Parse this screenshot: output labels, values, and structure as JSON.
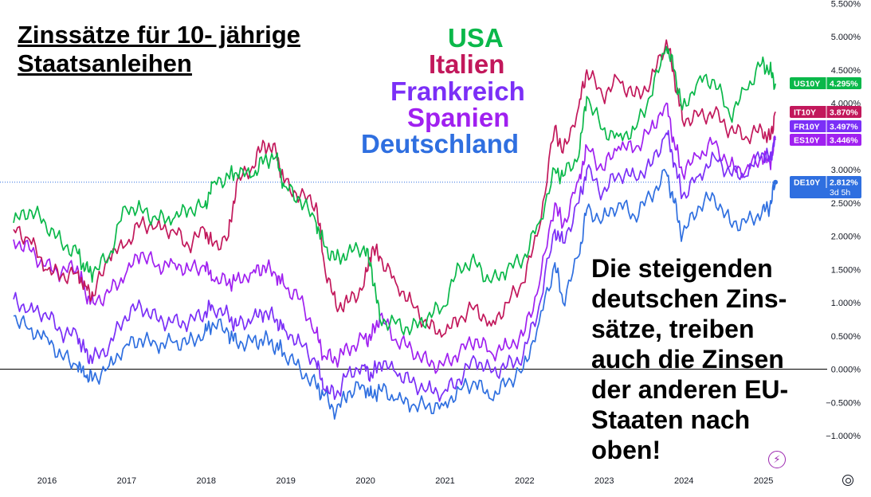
{
  "title_lines": [
    "Zinssätze für 10- jährige",
    "Staatsanleihen"
  ],
  "legend_words": [
    {
      "text": "USA",
      "color": "#0ab84a"
    },
    {
      "text": "Italien",
      "color": "#c2185b"
    },
    {
      "text": "Frankreich",
      "color": "#7b2ff7"
    },
    {
      "text": "Spanien",
      "color": "#a020f0"
    },
    {
      "text": "Deutschland",
      "color": "#2f6fe0"
    }
  ],
  "annotation_lines": [
    "Die steigenden",
    "deutschen Zins-",
    "sätze, treiben",
    "auch die Zinsen",
    "der anderen EU-",
    "Staaten nach",
    "oben!"
  ],
  "price_tags": [
    {
      "symbol": "US10Y",
      "value": "4.295%",
      "color": "#0ab84a"
    },
    {
      "symbol": "IT10Y",
      "value": "3.870%",
      "color": "#c2185b"
    },
    {
      "symbol": "FR10Y",
      "value": "3.497%",
      "color": "#7b2ff7"
    },
    {
      "symbol": "ES10Y",
      "value": "3.446%",
      "color": "#a020f0"
    },
    {
      "symbol": "DE10Y",
      "value": "2.812%",
      "extra": "3d 5h",
      "color": "#2f6fe0"
    }
  ],
  "icons": [
    "flash-icon",
    "settings-icon"
  ],
  "chart_data": {
    "type": "line",
    "title": "",
    "xlabel": "",
    "ylabel": "",
    "x_ticks": [
      "2016",
      "2017",
      "2018",
      "2019",
      "2020",
      "2021",
      "2022",
      "2023",
      "2024",
      "2025"
    ],
    "y_ticks": [
      "5.500%",
      "5.000%",
      "4.500%",
      "4.000%",
      "3.500%",
      "3.000%",
      "2.500%",
      "2.000%",
      "1.500%",
      "1.000%",
      "0.500%",
      "0.000%",
      "−0.500%",
      "−1.000%"
    ],
    "ylim": [
      -1.1,
      5.5
    ],
    "x_range": [
      2015.57,
      2025.22
    ],
    "grid": false,
    "x": [
      2015.6,
      2015.8,
      2016.0,
      2016.2,
      2016.4,
      2016.5,
      2016.6,
      2016.8,
      2017.0,
      2017.2,
      2017.4,
      2017.6,
      2017.8,
      2018.0,
      2018.1,
      2018.3,
      2018.4,
      2018.6,
      2018.75,
      2018.9,
      2019.0,
      2019.2,
      2019.4,
      2019.5,
      2019.65,
      2019.8,
      2020.0,
      2020.1,
      2020.2,
      2020.4,
      2020.6,
      2020.8,
      2021.0,
      2021.2,
      2021.4,
      2021.6,
      2021.8,
      2022.0,
      2022.2,
      2022.4,
      2022.5,
      2022.7,
      2022.8,
      2023.0,
      2023.2,
      2023.4,
      2023.6,
      2023.8,
      2023.9,
      2024.0,
      2024.2,
      2024.4,
      2024.6,
      2024.8,
      2025.0,
      2025.1,
      2025.17
    ],
    "series": [
      {
        "name": "USA",
        "color": "#0ab84a",
        "values": [
          2.2,
          2.4,
          2.2,
          1.9,
          1.75,
          1.5,
          1.45,
          1.7,
          2.45,
          2.4,
          2.25,
          2.25,
          2.4,
          2.45,
          2.8,
          2.9,
          2.95,
          2.9,
          3.15,
          3.2,
          2.75,
          2.55,
          2.2,
          1.85,
          1.65,
          1.75,
          1.85,
          1.5,
          0.75,
          0.68,
          0.6,
          0.78,
          0.95,
          1.55,
          1.6,
          1.3,
          1.5,
          1.65,
          2.2,
          3.0,
          2.9,
          3.2,
          4.1,
          3.6,
          3.5,
          3.6,
          4.1,
          4.85,
          4.5,
          3.9,
          4.35,
          4.35,
          3.8,
          4.2,
          4.6,
          4.5,
          4.295
        ]
      },
      {
        "name": "Italien",
        "color": "#c2185b",
        "values": [
          2.1,
          1.95,
          1.5,
          1.4,
          1.45,
          1.25,
          1.1,
          1.7,
          1.85,
          2.2,
          2.15,
          2.1,
          1.85,
          2.1,
          1.85,
          2.0,
          2.8,
          3.05,
          3.4,
          3.25,
          2.8,
          2.6,
          2.5,
          1.6,
          0.95,
          1.0,
          1.25,
          1.8,
          1.7,
          1.3,
          1.0,
          0.65,
          0.52,
          0.75,
          0.95,
          0.65,
          1.0,
          1.3,
          2.1,
          3.65,
          3.25,
          3.95,
          4.5,
          4.1,
          4.35,
          4.1,
          4.3,
          4.95,
          4.4,
          3.75,
          3.8,
          3.85,
          3.6,
          3.5,
          3.6,
          3.45,
          3.87
        ]
      },
      {
        "name": "Frankreich",
        "color": "#7b2ff7",
        "values": [
          1.05,
          0.9,
          0.85,
          0.55,
          0.5,
          0.25,
          0.15,
          0.35,
          0.8,
          0.95,
          0.75,
          0.7,
          0.7,
          0.85,
          0.95,
          0.8,
          0.65,
          0.75,
          0.85,
          0.75,
          0.6,
          0.4,
          0.1,
          -0.3,
          -0.4,
          -0.05,
          0.05,
          -0.1,
          0.1,
          -0.05,
          -0.2,
          -0.3,
          -0.35,
          -0.15,
          0.15,
          -0.05,
          0.05,
          0.2,
          0.95,
          2.1,
          1.9,
          2.5,
          3.0,
          2.65,
          2.95,
          2.9,
          3.05,
          3.55,
          3.1,
          2.6,
          2.9,
          3.2,
          2.95,
          2.9,
          3.25,
          3.15,
          3.497
        ]
      },
      {
        "name": "Spanien",
        "color": "#a020f0",
        "values": [
          1.95,
          1.8,
          1.55,
          1.45,
          1.55,
          1.15,
          1.0,
          1.15,
          1.4,
          1.75,
          1.55,
          1.6,
          1.5,
          1.55,
          1.35,
          1.3,
          1.35,
          1.45,
          1.55,
          1.4,
          1.25,
          1.05,
          0.55,
          0.2,
          0.15,
          0.3,
          0.45,
          0.5,
          0.8,
          0.45,
          0.3,
          0.1,
          0.05,
          0.25,
          0.45,
          0.25,
          0.35,
          0.5,
          1.25,
          2.5,
          2.15,
          2.85,
          3.35,
          3.0,
          3.35,
          3.3,
          3.6,
          4.0,
          3.4,
          2.95,
          3.2,
          3.4,
          3.05,
          3.0,
          3.2,
          3.1,
          3.446
        ]
      },
      {
        "name": "Deutschland",
        "color": "#2f6fe0",
        "values": [
          0.8,
          0.6,
          0.5,
          0.2,
          0.05,
          -0.1,
          -0.15,
          0.05,
          0.35,
          0.45,
          0.35,
          0.4,
          0.4,
          0.55,
          0.7,
          0.55,
          0.4,
          0.4,
          0.45,
          0.35,
          0.25,
          0.0,
          -0.25,
          -0.4,
          -0.65,
          -0.35,
          -0.25,
          -0.4,
          -0.3,
          -0.45,
          -0.55,
          -0.55,
          -0.55,
          -0.3,
          -0.2,
          -0.45,
          -0.2,
          0.0,
          0.7,
          1.6,
          1.0,
          1.7,
          2.4,
          2.25,
          2.5,
          2.3,
          2.6,
          2.95,
          2.5,
          2.0,
          2.45,
          2.6,
          2.2,
          2.2,
          2.35,
          2.45,
          2.812
        ]
      }
    ]
  }
}
